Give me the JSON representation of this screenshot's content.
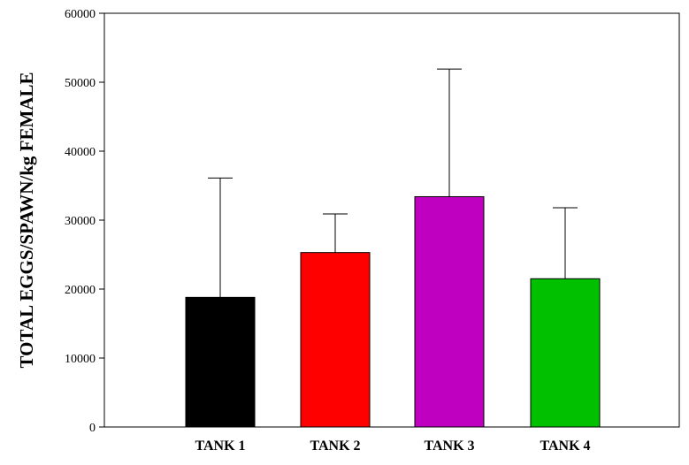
{
  "chart_data": {
    "type": "bar",
    "title": "",
    "xlabel": "",
    "ylabel": "TOTAL EGGS/SPAWN/kg FEMALE",
    "categories": [
      "TANK 1",
      "TANK 2",
      "TANK 3",
      "TANK 4"
    ],
    "values": [
      18800,
      25300,
      33400,
      21500
    ],
    "error_upper": [
      36100,
      30900,
      51900,
      31800
    ],
    "bar_colors": [
      "#000000",
      "#ff0000",
      "#c000c0",
      "#00c000"
    ],
    "ylim": [
      0,
      60000
    ],
    "yticks": [
      0,
      10000,
      20000,
      30000,
      40000,
      50000,
      60000
    ],
    "ytick_labels": [
      "0",
      "10000",
      "20000",
      "30000",
      "40000",
      "50000",
      "60000"
    ],
    "grid": false,
    "legend": "none"
  }
}
